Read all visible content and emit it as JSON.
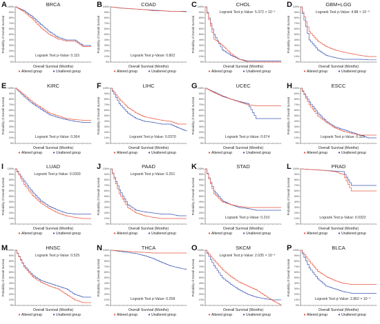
{
  "colors": {
    "altered": "#e8553d",
    "unaltered": "#3a55b4",
    "axis": "#555555"
  },
  "common": {
    "ylabel": "Probability of Overall Survival",
    "xlabel": "Overall Survival (Months)",
    "yticks": [
      "0%",
      "10%",
      "20%",
      "30%",
      "40%",
      "50%",
      "60%",
      "70%",
      "80%",
      "90%",
      "100%"
    ],
    "legend": [
      "Altered group",
      "Unaltered group"
    ]
  },
  "chart_data": [
    {
      "panel": "A",
      "type": "line",
      "title": "BRCA",
      "pvalue_text": "Logrank Test p-Value: 0.115",
      "pvalue_pos": "bottom",
      "x": [
        0,
        24,
        48,
        72,
        96,
        120,
        144,
        168,
        192,
        216
      ],
      "series": [
        {
          "name": "Altered group",
          "values": [
            1.0,
            0.91,
            0.78,
            0.62,
            0.5,
            0.42,
            0.38,
            0.38,
            0.28,
            0.28
          ]
        },
        {
          "name": "Unaltered group",
          "values": [
            1.0,
            0.93,
            0.82,
            0.68,
            0.55,
            0.45,
            0.4,
            0.4,
            0.3,
            0.3
          ]
        }
      ]
    },
    {
      "panel": "B",
      "type": "line",
      "title": "COAD",
      "pvalue_text": "Logrank Test p-Value: 0.802",
      "pvalue_pos": "bottom",
      "x": [
        0,
        24,
        48,
        72,
        96,
        120,
        144,
        168,
        192,
        216
      ],
      "series": [
        {
          "name": "Altered group",
          "values": [
            1.0,
            0.98,
            0.97,
            0.96,
            0.95,
            0.93,
            0.93,
            0.92,
            0.92,
            0.92
          ]
        },
        {
          "name": "Unaltered group",
          "values": [
            1.0,
            0.98,
            0.97,
            0.96,
            0.95,
            0.94,
            0.93,
            0.92,
            0.92,
            0.91
          ]
        }
      ]
    },
    {
      "panel": "C",
      "type": "line",
      "title": "CHOL",
      "pvalue_text": "Logrank Test p-Value: 5.372 × 10⁻⁵",
      "pvalue_pos": "top",
      "x": [
        0,
        24,
        48,
        72,
        96,
        120,
        144,
        168,
        192,
        216
      ],
      "series": [
        {
          "name": "Altered group",
          "values": [
            1.0,
            0.42,
            0.3,
            0.15,
            0.05,
            0.0,
            0.0,
            0.0,
            0.0,
            0.0
          ]
        },
        {
          "name": "Unaltered group",
          "values": [
            1.0,
            0.5,
            0.22,
            0.12,
            0.05,
            0.02,
            0.02,
            0.02,
            0.02,
            0.02
          ]
        }
      ]
    },
    {
      "panel": "D",
      "type": "line",
      "title": "GBM+LGG",
      "pvalue_text": "Logrank Test p-Value: 4.88 × 10⁻⁹",
      "pvalue_pos": "top",
      "x": [
        0,
        24,
        48,
        72,
        96,
        120,
        144,
        168,
        192,
        216
      ],
      "series": [
        {
          "name": "Altered group",
          "values": [
            1.0,
            0.55,
            0.38,
            0.28,
            0.22,
            0.18,
            0.15,
            0.12,
            0.1,
            0.1
          ]
        },
        {
          "name": "Unaltered group",
          "values": [
            1.0,
            0.4,
            0.22,
            0.12,
            0.08,
            0.05,
            0.05,
            0.05,
            0.04,
            0.04
          ]
        }
      ]
    },
    {
      "panel": "E",
      "type": "line",
      "title": "KIRC",
      "pvalue_text": "Logrank Test p-Value: 0.364",
      "pvalue_pos": "bottom",
      "x": [
        0,
        24,
        48,
        72,
        96,
        120,
        144,
        168,
        192,
        216
      ],
      "series": [
        {
          "name": "Altered group",
          "values": [
            1.0,
            0.88,
            0.75,
            0.65,
            0.55,
            0.5,
            0.45,
            0.43,
            0.42,
            0.42
          ]
        },
        {
          "name": "Unaltered group",
          "values": [
            1.0,
            0.85,
            0.72,
            0.62,
            0.52,
            0.47,
            0.43,
            0.4,
            0.38,
            0.38
          ]
        }
      ]
    },
    {
      "panel": "F",
      "type": "line",
      "title": "LIHC",
      "pvalue_text": "Logrank Test p-Value: 0.0370",
      "pvalue_pos": "bottom",
      "x": [
        0,
        24,
        48,
        72,
        96,
        120,
        144,
        168,
        192,
        216
      ],
      "series": [
        {
          "name": "Altered group",
          "values": [
            1.0,
            0.8,
            0.65,
            0.55,
            0.48,
            0.45,
            0.42,
            0.4,
            0.35,
            0.35
          ]
        },
        {
          "name": "Unaltered group",
          "values": [
            1.0,
            0.72,
            0.55,
            0.45,
            0.4,
            0.38,
            0.35,
            0.35,
            0.28,
            0.22
          ]
        }
      ]
    },
    {
      "panel": "G",
      "type": "line",
      "title": "UCEC",
      "pvalue_text": "Logrank Test p-Value: 0.674",
      "pvalue_pos": "bottom",
      "x": [
        0,
        24,
        48,
        72,
        96,
        120,
        144,
        168,
        192,
        216
      ],
      "series": [
        {
          "name": "Altered group",
          "values": [
            1.0,
            0.92,
            0.85,
            0.8,
            0.75,
            0.7,
            0.68,
            0.68,
            0.68,
            0.68
          ]
        },
        {
          "name": "Unaltered group",
          "values": [
            1.0,
            0.93,
            0.86,
            0.8,
            0.76,
            0.72,
            0.45,
            0.45,
            0.45,
            0.45
          ]
        }
      ]
    },
    {
      "panel": "H",
      "type": "line",
      "title": "ESCC",
      "pvalue_text": "Logrank Test p-Value: 0.321",
      "pvalue_pos": "bottom",
      "x": [
        0,
        24,
        48,
        72,
        96,
        120,
        144,
        168,
        192,
        216
      ],
      "series": [
        {
          "name": "Altered group",
          "values": [
            1.0,
            0.7,
            0.5,
            0.38,
            0.28,
            0.22,
            0.18,
            0.15,
            0.15,
            0.15
          ]
        },
        {
          "name": "Unaltered group",
          "values": [
            1.0,
            0.75,
            0.55,
            0.4,
            0.3,
            0.25,
            0.2,
            0.15,
            0.1,
            0.1
          ]
        }
      ]
    },
    {
      "panel": "I",
      "type": "line",
      "title": "LUAD",
      "pvalue_text": "Logrank Test p-Value: 0.0303",
      "pvalue_pos": "top",
      "x": [
        0,
        24,
        48,
        72,
        96,
        120,
        144,
        168,
        192,
        216
      ],
      "series": [
        {
          "name": "Altered group",
          "values": [
            1.0,
            0.72,
            0.52,
            0.38,
            0.28,
            0.2,
            0.15,
            0.12,
            0.1,
            0.1
          ]
        },
        {
          "name": "Unaltered group",
          "values": [
            1.0,
            0.78,
            0.58,
            0.42,
            0.32,
            0.25,
            0.2,
            0.18,
            0.18,
            0.18
          ]
        }
      ]
    },
    {
      "panel": "J",
      "type": "line",
      "title": "PAAD",
      "pvalue_text": "Logrank Test p-Value: 0.251",
      "pvalue_pos": "top",
      "x": [
        0,
        24,
        48,
        72,
        96,
        120,
        144,
        168,
        192,
        216
      ],
      "series": [
        {
          "name": "Altered group",
          "values": [
            1.0,
            0.55,
            0.3,
            0.2,
            0.15,
            0.12,
            0.1,
            0.1,
            0.1,
            0.1
          ]
        },
        {
          "name": "Unaltered group",
          "values": [
            1.0,
            0.62,
            0.35,
            0.25,
            0.22,
            0.2,
            0.18,
            0.18,
            0.15,
            0.15
          ]
        }
      ]
    },
    {
      "panel": "K",
      "type": "line",
      "title": "STAD",
      "pvalue_text": "Logrank Test p-Value: 0.210",
      "pvalue_pos": "bottom",
      "x": [
        0,
        24,
        48,
        72,
        96,
        120,
        144,
        168,
        192,
        216
      ],
      "series": [
        {
          "name": "Altered group",
          "values": [
            1.0,
            0.55,
            0.4,
            0.35,
            0.32,
            0.3,
            0.3,
            0.3,
            0.3,
            0.3
          ]
        },
        {
          "name": "Unaltered group",
          "values": [
            1.0,
            0.6,
            0.42,
            0.35,
            0.3,
            0.28,
            0.25,
            0.25,
            0.25,
            0.25
          ]
        }
      ]
    },
    {
      "panel": "L",
      "type": "line",
      "title": "PRAD",
      "pvalue_text": "Logrank Test p-Value: 0.0322",
      "pvalue_pos": "bottom",
      "x": [
        0,
        24,
        48,
        72,
        96,
        120,
        144,
        168,
        192,
        216
      ],
      "series": [
        {
          "name": "Altered group",
          "values": [
            1.0,
            0.99,
            0.98,
            0.97,
            0.95,
            0.9,
            0.6,
            0.6,
            0.6,
            0.6
          ]
        },
        {
          "name": "Unaltered group",
          "values": [
            1.0,
            0.99,
            0.98,
            0.97,
            0.96,
            0.95,
            0.7,
            0.7,
            0.7,
            0.7
          ]
        }
      ]
    },
    {
      "panel": "M",
      "type": "line",
      "title": "HNSC",
      "pvalue_text": "Logrank Test p-Value: 0.525",
      "pvalue_pos": "top",
      "x": [
        0,
        24,
        48,
        72,
        96,
        120,
        144,
        168,
        192,
        216
      ],
      "series": [
        {
          "name": "Altered group",
          "values": [
            1.0,
            0.7,
            0.52,
            0.42,
            0.35,
            0.3,
            0.2,
            0.1,
            0.05,
            0.05
          ]
        },
        {
          "name": "Unaltered group",
          "values": [
            1.0,
            0.72,
            0.55,
            0.45,
            0.4,
            0.35,
            0.3,
            0.2,
            0.15,
            0.15
          ]
        }
      ]
    },
    {
      "panel": "N",
      "type": "line",
      "title": "THCA",
      "pvalue_text": "Logrank Test p-Value: 0.258",
      "pvalue_pos": "bottom",
      "x": [
        0,
        24,
        48,
        72,
        96,
        120,
        144,
        168,
        192,
        216
      ],
      "series": [
        {
          "name": "Altered group",
          "values": [
            1.0,
            0.99,
            0.98,
            0.97,
            0.96,
            0.95,
            0.95,
            0.95,
            0.95,
            0.95
          ]
        },
        {
          "name": "Unaltered group",
          "values": [
            1.0,
            0.98,
            0.96,
            0.94,
            0.9,
            0.85,
            0.78,
            0.72,
            0.68,
            0.65
          ]
        }
      ]
    },
    {
      "panel": "O",
      "type": "line",
      "title": "SKCM",
      "pvalue_text": "Logrank Test p-Value: 2.035 × 10⁻⁵",
      "pvalue_pos": "top",
      "x": [
        0,
        24,
        48,
        72,
        96,
        120,
        144,
        168,
        192,
        216
      ],
      "series": [
        {
          "name": "Altered group",
          "values": [
            1.0,
            0.82,
            0.65,
            0.52,
            0.42,
            0.35,
            0.28,
            0.18,
            0.08,
            0.0
          ]
        },
        {
          "name": "Unaltered group",
          "values": [
            1.0,
            0.72,
            0.5,
            0.38,
            0.28,
            0.2,
            0.15,
            0.12,
            0.1,
            0.1
          ]
        }
      ]
    },
    {
      "panel": "P",
      "type": "line",
      "title": "BLCA",
      "pvalue_text": "Logrank Test p-Value: 2.862 × 10⁻⁴",
      "pvalue_pos": "bottom",
      "x": [
        0,
        24,
        48,
        72,
        96,
        120,
        144,
        168,
        192,
        216
      ],
      "series": [
        {
          "name": "Altered group",
          "values": [
            1.0,
            0.8,
            0.62,
            0.52,
            0.45,
            0.4,
            0.38,
            0.38,
            0.38,
            0.38
          ]
        },
        {
          "name": "Unaltered group",
          "values": [
            1.0,
            0.68,
            0.48,
            0.35,
            0.3,
            0.25,
            0.22,
            0.22,
            0.22,
            0.22
          ]
        }
      ]
    }
  ]
}
